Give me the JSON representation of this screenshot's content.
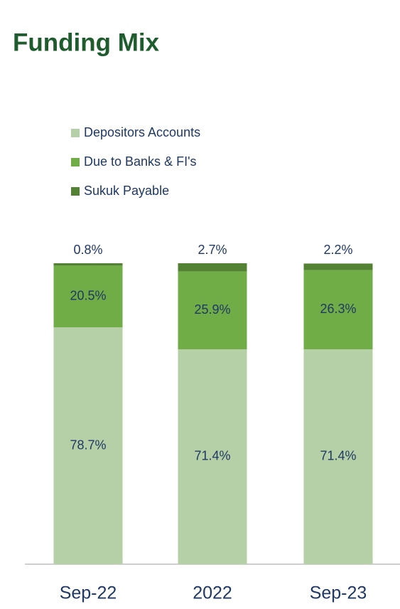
{
  "chart_data": {
    "type": "stacked_bar",
    "title": "Funding Mix",
    "categories": [
      "Sep-22",
      "2022",
      "Sep-23"
    ],
    "series": [
      {
        "name": "Depositors Accounts",
        "color": "#b5d0a6",
        "values": [
          78.7,
          71.4,
          71.4
        ],
        "value_labels": [
          "78.7%",
          "71.4%",
          "71.4%"
        ]
      },
      {
        "name": "Due to Banks & FI's",
        "color": "#70ad47",
        "values": [
          20.5,
          25.9,
          26.3
        ],
        "value_labels": [
          "20.5%",
          "25.9%",
          "26.3%"
        ]
      },
      {
        "name": "Sukuk Payable",
        "color": "#548235",
        "values": [
          0.8,
          2.7,
          2.2
        ],
        "value_labels": [
          "0.8%",
          "2.7%",
          "2.2%"
        ]
      }
    ]
  }
}
